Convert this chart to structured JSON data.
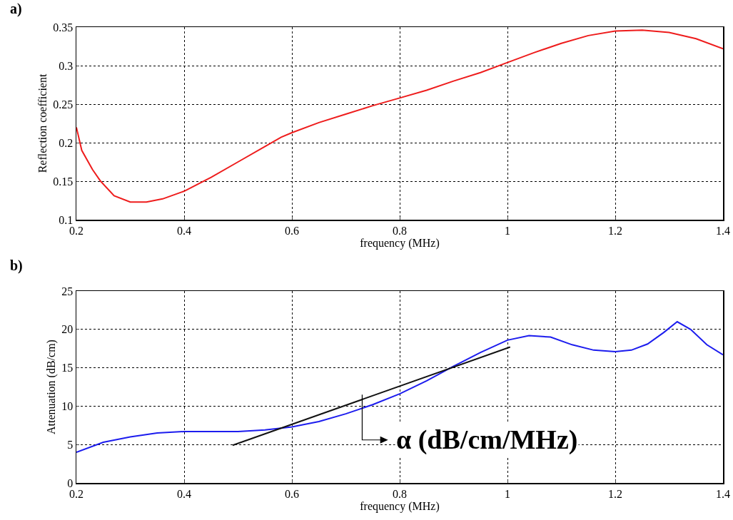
{
  "chart_data": [
    {
      "type": "line",
      "xlabel": "frequency (MHz)",
      "ylabel": "Reflection coefficient",
      "annotations": [
        "a)"
      ],
      "series": [
        {
          "color": "#ee1c1c",
          "x": [
            0.2,
            0.21,
            0.23,
            0.245,
            0.27,
            0.3,
            0.33,
            0.36,
            0.4,
            0.45,
            0.5,
            0.55,
            0.58,
            0.6,
            0.65,
            0.7,
            0.75,
            0.8,
            0.85,
            0.9,
            0.95,
            1.0,
            1.05,
            1.1,
            1.15,
            1.2,
            1.25,
            1.3,
            1.35,
            1.4
          ],
          "values": [
            0.22,
            0.19,
            0.165,
            0.15,
            0.131,
            0.123,
            0.123,
            0.127,
            0.137,
            0.155,
            0.175,
            0.195,
            0.207,
            0.213,
            0.226,
            0.237,
            0.248,
            0.258,
            0.268,
            0.28,
            0.291,
            0.304,
            0.317,
            0.329,
            0.339,
            0.345,
            0.346,
            0.343,
            0.335,
            0.322
          ]
        }
      ],
      "xlim": [
        0.2,
        1.4
      ],
      "xticks": [
        0.2,
        0.4,
        0.6,
        0.8,
        1,
        1.2,
        1.4
      ],
      "ylim": [
        0.1,
        0.35
      ],
      "yticks": [
        0.1,
        0.15,
        0.2,
        0.25,
        0.3,
        0.35
      ],
      "grid": true,
      "marker": "none",
      "line_style": "solid"
    },
    {
      "type": "line",
      "xlabel": "frequency (MHz)",
      "ylabel": "Attenuation (dB/cm)",
      "annotations": [
        "b)",
        "α (dB/cm/MHz)"
      ],
      "series": [
        {
          "color": "#1c1cee",
          "x": [
            0.2,
            0.25,
            0.3,
            0.35,
            0.4,
            0.5,
            0.55,
            0.6,
            0.65,
            0.7,
            0.75,
            0.8,
            0.85,
            0.9,
            0.95,
            1.0,
            1.04,
            1.08,
            1.12,
            1.16,
            1.2,
            1.23,
            1.26,
            1.29,
            1.315,
            1.34,
            1.37,
            1.4
          ],
          "values": [
            4.0,
            5.3,
            6.0,
            6.5,
            6.7,
            6.7,
            6.9,
            7.3,
            8.0,
            9.0,
            10.2,
            11.6,
            13.3,
            15.2,
            17.0,
            18.6,
            19.2,
            19.0,
            18.0,
            17.3,
            17.1,
            17.3,
            18.1,
            19.6,
            21.0,
            20.0,
            18.0,
            16.7
          ]
        },
        {
          "type": "line",
          "color": "#111111",
          "x": [
            0.49,
            1.005
          ],
          "values": [
            4.9,
            17.7
          ]
        }
      ],
      "xlim": [
        0.2,
        1.4
      ],
      "xticks": [
        0.2,
        0.4,
        0.6,
        0.8,
        1,
        1.2,
        1.4
      ],
      "ylim": [
        0,
        25
      ],
      "yticks": [
        0,
        5,
        10,
        15,
        20,
        25
      ],
      "grid": true,
      "marker": "none",
      "line_style": "solid"
    }
  ]
}
